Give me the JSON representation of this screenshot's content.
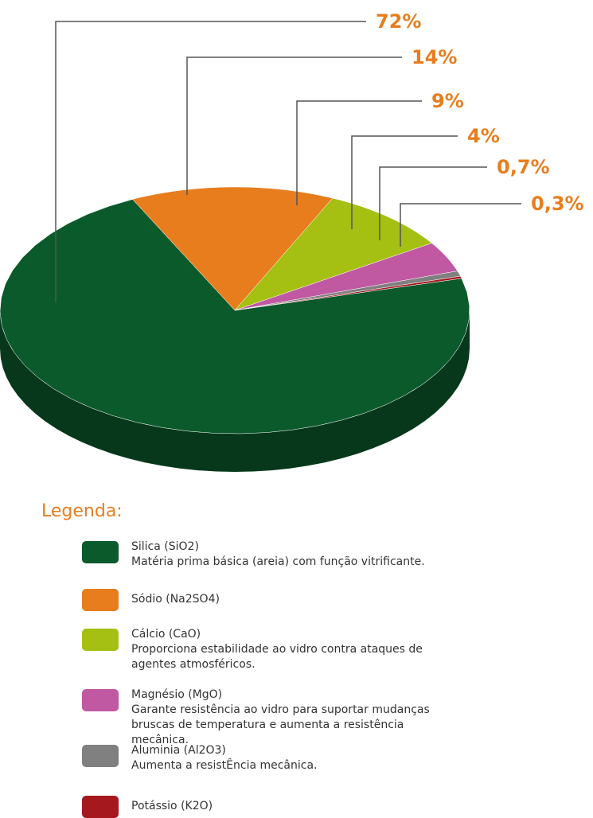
{
  "chart_data": {
    "type": "pie",
    "legend_title": "Legenda:",
    "categories": [
      "Silica (SiO2)",
      "Sódio (Na2SO4)",
      "Cálcio (CaO)",
      "Magnésio (MgO)",
      "Aluminia (Al2O3)",
      "Potássio (K2O)"
    ],
    "descriptions": [
      "Matéria prima básica (areia) com função vitrificante.",
      null,
      "Proporciona estabilidade ao vidro contra ataques de agentes atmosféricos.",
      "Garante resistência ao vidro para suportar mudanças bruscas de temperatura e aumenta a resistência mecânica.",
      "Aumenta a resistÊncia mecânica.",
      null
    ],
    "values": [
      72,
      14,
      9,
      4,
      0.7,
      0.3
    ],
    "value_labels": [
      "72%",
      "14%",
      "9%",
      "4%",
      "0,7%",
      "0,3%"
    ],
    "colors": [
      "#0b5a2b",
      "#e87d1e",
      "#a5c012",
      "#c058a2",
      "#808080",
      "#a5191e"
    ]
  }
}
